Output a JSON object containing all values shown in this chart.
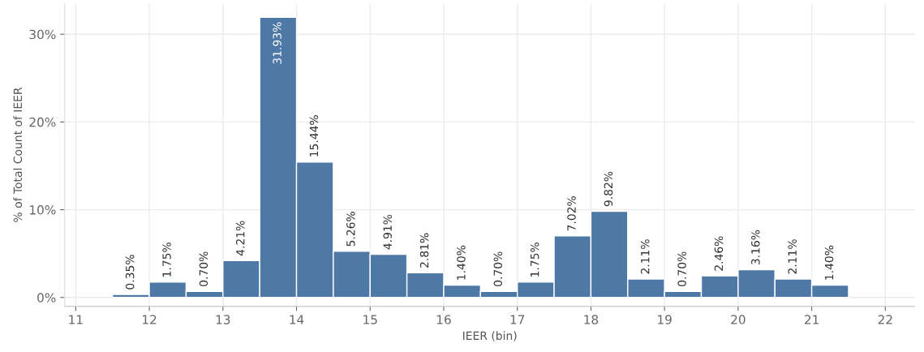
{
  "chart_data": {
    "type": "histogram",
    "xlabel": "IEER (bin)",
    "ylabel": "% of Total Count of IEER",
    "color": "#4e79a7",
    "bins": [
      11.5,
      12,
      12.5,
      13,
      13.5,
      14,
      14.5,
      15,
      15.5,
      16,
      16.5,
      17,
      17.5,
      18,
      18.5,
      19,
      19.5,
      20,
      20.5,
      21,
      21.5
    ],
    "values": [
      0.35,
      1.75,
      0.7,
      4.21,
      31.93,
      15.44,
      5.26,
      4.91,
      2.81,
      1.4,
      0.7,
      1.75,
      7.02,
      9.82,
      2.11,
      0.7,
      2.46,
      3.16,
      2.11,
      1.4
    ],
    "value_labels": [
      "0.35%",
      "1.75%",
      "0.70%",
      "4.21%",
      "31.93%",
      "15.44%",
      "5.26%",
      "4.91%",
      "2.81%",
      "1.40%",
      "0.70%",
      "1.75%",
      "7.02%",
      "9.82%",
      "2.11%",
      "0.70%",
      "2.46%",
      "3.16%",
      "2.11%",
      "1.40%"
    ],
    "xlim": [
      10.85,
      22.4
    ],
    "xticks": [
      11,
      12,
      13,
      14,
      15,
      16,
      17,
      18,
      19,
      20,
      21,
      22
    ],
    "ylim": [
      -1,
      33.5
    ],
    "yticks": [
      {
        "value": 0,
        "label": "0%"
      },
      {
        "value": 10,
        "label": "10%"
      },
      {
        "value": 20,
        "label": "20%"
      },
      {
        "value": 30,
        "label": "30%"
      }
    ],
    "grid": true
  }
}
